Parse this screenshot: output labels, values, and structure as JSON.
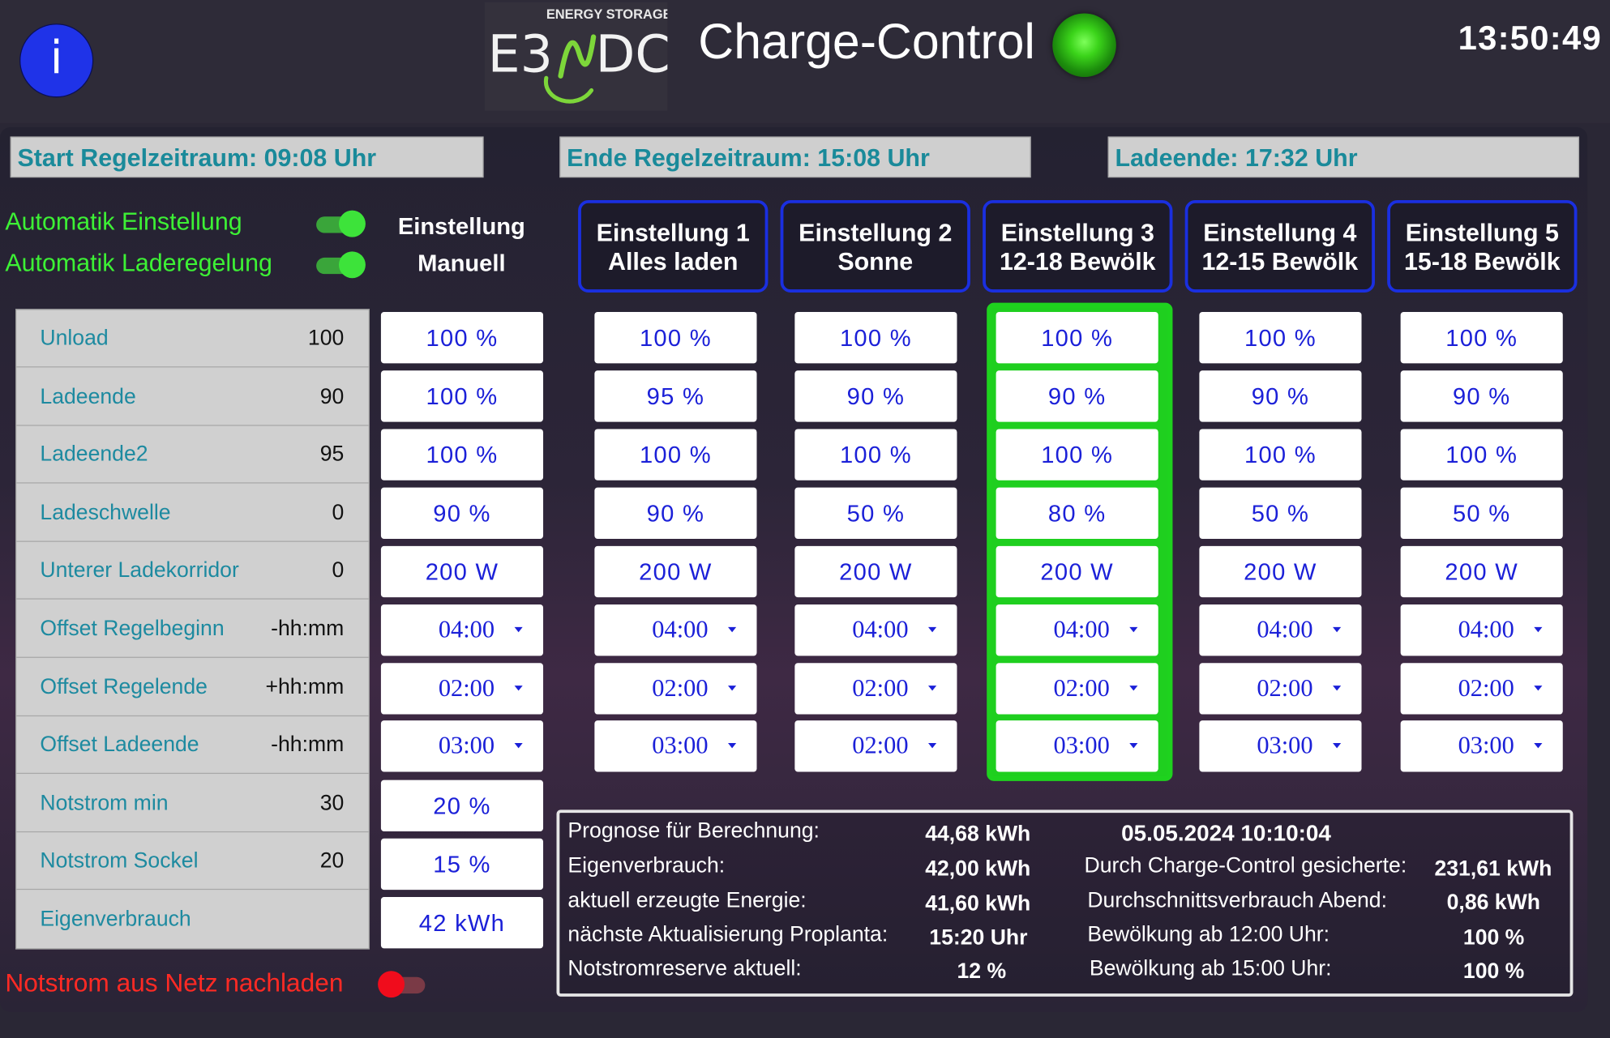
{
  "header": {
    "info_label": "i",
    "logo_small": "ENERGY STORAGE",
    "logo_left": "E3",
    "logo_right": "DC",
    "title": "Charge-Control",
    "clock": "13:50:49"
  },
  "periods": {
    "start": "Start Regelzeitraum: 09:08 Uhr",
    "end": "Ende Regelzeitraum: 15:08 Uhr",
    "charge_end": "Ladeende: 17:32 Uhr"
  },
  "toggles": {
    "auto_setting": {
      "label": "Automatik Einstellung",
      "state": "on"
    },
    "auto_charge": {
      "label": "Automatik Laderegelung",
      "state": "on"
    },
    "emergency_grid": {
      "label": "Notstrom aus Netz nachladen",
      "state": "off"
    }
  },
  "columns": {
    "manual": {
      "line1": "Einstellung",
      "line2": "Manuell"
    },
    "settings": [
      {
        "line1": "Einstellung 1",
        "line2": "Alles laden"
      },
      {
        "line1": "Einstellung 2",
        "line2": "Sonne"
      },
      {
        "line1": "Einstellung 3",
        "line2": "12-18 Bewölk"
      },
      {
        "line1": "Einstellung 4",
        "line2": "12-15 Bewölk"
      },
      {
        "line1": "Einstellung 5",
        "line2": "15-18 Bewölk"
      }
    ],
    "active_setting": 3,
    "active_color": "#1ed21e"
  },
  "params": [
    {
      "name": "Unload",
      "value": "100"
    },
    {
      "name": "Ladeende",
      "value": "90"
    },
    {
      "name": "Ladeende2",
      "value": "95"
    },
    {
      "name": "Ladeschwelle",
      "value": "0"
    },
    {
      "name": "Unterer Ladekorridor",
      "value": "0"
    },
    {
      "name": "Offset Regelbeginn",
      "value": "-hh:mm"
    },
    {
      "name": "Offset Regelende",
      "value": "+hh:mm"
    },
    {
      "name": "Offset Ladeende",
      "value": "-hh:mm"
    },
    {
      "name": "Notstrom min",
      "value": "30"
    },
    {
      "name": "Notstrom Sockel",
      "value": "20"
    },
    {
      "name": "Eigenverbrauch",
      "value": ""
    }
  ],
  "manual_values": [
    "100 %",
    "100 %",
    "100 %",
    "90 %",
    "200 W",
    "04:00",
    "02:00",
    "03:00",
    "20 %",
    "15 %",
    "42 kWh"
  ],
  "setting_values": [
    [
      "100 %",
      "95 %",
      "100 %",
      "90 %",
      "200 W",
      "04:00",
      "02:00",
      "03:00"
    ],
    [
      "100 %",
      "90 %",
      "100 %",
      "50 %",
      "200 W",
      "04:00",
      "02:00",
      "02:00"
    ],
    [
      "100 %",
      "90 %",
      "100 %",
      "80 %",
      "200 W",
      "04:00",
      "02:00",
      "03:00"
    ],
    [
      "100 %",
      "90 %",
      "100 %",
      "50 %",
      "200 W",
      "04:00",
      "02:00",
      "03:00"
    ],
    [
      "100 %",
      "90 %",
      "100 %",
      "50 %",
      "200 W",
      "04:00",
      "02:00",
      "03:00"
    ]
  ],
  "info": {
    "prognose_label": "Prognose für Berechnung:",
    "prognose_value": "44,68 kWh",
    "eigenverbrauch_label": "Eigenverbrauch:",
    "eigenverbrauch_value": "42,00 kWh",
    "erzeugt_label": "aktuell erzeugte Energie:",
    "erzeugt_value": "41,60 kWh",
    "aktualisierung_label": "nächste Aktualisierung Proplanta:",
    "aktualisierung_value": "15:20 Uhr",
    "reserve_label": "Notstromreserve aktuell:",
    "reserve_value": "12 %",
    "timestamp": "05.05.2024 10:10:04",
    "gesichert_label": "Durch Charge-Control gesicherte:",
    "gesichert_value": "231,61 kWh",
    "durchschnitt_label": "Durchschnittsverbrauch Abend:",
    "durchschnitt_value": "0,86 kWh",
    "bew12_label": "Bewölkung ab 12:00 Uhr:",
    "bew12_value": "100 %",
    "bew15_label": "Bewölkung ab 15:00 Uhr:",
    "bew15_value": "100 %"
  }
}
